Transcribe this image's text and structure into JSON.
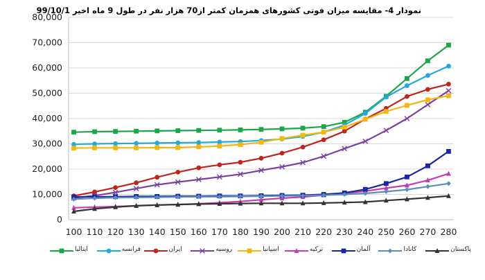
{
  "chart_data": {
    "type": "line",
    "title": "نمودار 4- مقایسه میزان فوتی کشورهای همزمان کمتر از70 هزار نفر در طول 9 ماه اخیر 99/10/1",
    "x": [
      100,
      110,
      120,
      130,
      140,
      150,
      160,
      170,
      180,
      190,
      200,
      210,
      220,
      230,
      240,
      250,
      260,
      270,
      280
    ],
    "ylim": [
      0,
      80000
    ],
    "yticks": [
      0,
      10000,
      20000,
      30000,
      40000,
      50000,
      60000,
      70000,
      80000
    ],
    "ytick_labels": [
      "0",
      "10,000",
      "20,000",
      "30,000",
      "40,000",
      "50,000",
      "60,000",
      "70,000",
      "80,000"
    ],
    "xtick_labels": [
      "100",
      "110",
      "120",
      "130",
      "140",
      "150",
      "160",
      "170",
      "180",
      "190",
      "200",
      "210",
      "220",
      "230",
      "240",
      "250",
      "260",
      "270",
      "280"
    ],
    "grid": "horizontal",
    "legend_position": "bottom",
    "series": [
      {
        "name": "ایتالیا",
        "color": "#1aa64a",
        "marker": "square",
        "values": [
          34600,
          34800,
          34900,
          35000,
          35100,
          35200,
          35300,
          35400,
          35500,
          35700,
          35900,
          36200,
          36800,
          38500,
          42500,
          48800,
          55800,
          62800,
          69000
        ]
      },
      {
        "name": "فرانسه",
        "color": "#22aadd",
        "marker": "circle",
        "values": [
          29800,
          30000,
          30100,
          30200,
          30300,
          30400,
          30500,
          30700,
          30900,
          31300,
          31900,
          32900,
          34600,
          37400,
          42000,
          48500,
          53000,
          57000,
          60700
        ]
      },
      {
        "name": "ایران",
        "color": "#c0241c",
        "marker": "circle",
        "values": [
          9400,
          11000,
          12700,
          14600,
          16800,
          18800,
          20500,
          21700,
          22700,
          24300,
          26300,
          28700,
          31600,
          35000,
          39800,
          44000,
          48700,
          51500,
          53600
        ]
      },
      {
        "name": "روسیه",
        "color": "#7a3fa0",
        "marker": "cross",
        "values": [
          8600,
          9500,
          10800,
          12300,
          13800,
          14900,
          15900,
          16900,
          18000,
          19500,
          20900,
          22600,
          25100,
          28100,
          31000,
          35300,
          40000,
          45500,
          51000
        ]
      },
      {
        "name": "اسپانیا",
        "color": "#f2b713",
        "marker": "square",
        "values": [
          28300,
          28400,
          28400,
          28400,
          28500,
          28500,
          28800,
          29100,
          29700,
          30600,
          32100,
          33400,
          34600,
          36600,
          39700,
          42800,
          45200,
          47400,
          49000
        ]
      },
      {
        "name": "ترکیه",
        "color": "#c43bb5",
        "marker": "triangle",
        "values": [
          4700,
          5000,
          5200,
          5500,
          5800,
          6000,
          6300,
          6700,
          7200,
          7900,
          8500,
          9000,
          9700,
          10400,
          11300,
          12500,
          13600,
          15600,
          18200
        ]
      },
      {
        "name": "آلمان",
        "color": "#1a25a8",
        "marker": "square",
        "values": [
          9000,
          9100,
          9100,
          9200,
          9200,
          9300,
          9300,
          9400,
          9400,
          9500,
          9600,
          9700,
          10000,
          10600,
          12000,
          14300,
          16900,
          21300,
          27000
        ]
      },
      {
        "name": "کانادا",
        "color": "#5b8fb8",
        "marker": "diamond",
        "values": [
          8100,
          8500,
          8700,
          8800,
          8900,
          9000,
          9100,
          9100,
          9200,
          9300,
          9400,
          9500,
          9700,
          10000,
          10400,
          11100,
          11900,
          13100,
          14300
        ]
      },
      {
        "name": "پاکستان",
        "color": "#333333",
        "marker": "triangle",
        "values": [
          3300,
          4300,
          5000,
          5500,
          5800,
          6000,
          6200,
          6300,
          6400,
          6500,
          6500,
          6500,
          6600,
          6800,
          7000,
          7600,
          8100,
          8700,
          9400
        ]
      }
    ]
  }
}
